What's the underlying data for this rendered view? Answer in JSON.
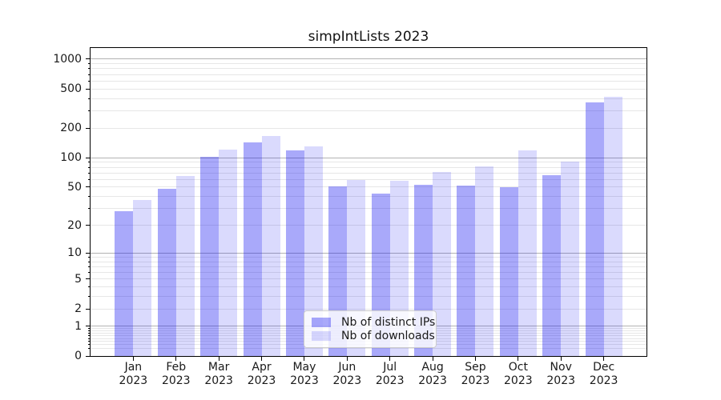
{
  "chart_data": {
    "type": "bar",
    "title": "simpIntLists 2023",
    "categories": [
      "Jan",
      "Feb",
      "Mar",
      "Apr",
      "May",
      "Jun",
      "Jul",
      "Aug",
      "Sep",
      "Oct",
      "Nov",
      "Dec"
    ],
    "x_year": "2023",
    "series": [
      {
        "name": "Nb of distinct IPs",
        "color": "rgba(10,10,240,0.35)",
        "values": [
          28,
          48,
          102,
          143,
          118,
          51,
          43,
          53,
          52,
          50,
          66,
          366
        ]
      },
      {
        "name": "Nb of downloads",
        "color": "rgba(10,10,240,0.15)",
        "values": [
          37,
          65,
          122,
          167,
          130,
          59,
          58,
          72,
          81,
          118,
          92,
          420
        ]
      }
    ],
    "y_scale": "log1p",
    "y_tick_values": [
      0,
      1,
      2,
      5,
      10,
      20,
      50,
      100,
      200,
      500,
      1000
    ],
    "ylim": [
      0,
      1300
    ],
    "grid": true,
    "legend_position": "lower center"
  },
  "colors": {
    "bar_distinct_ips_on_white": "#a9a9fa",
    "bar_downloads_on_white": "#dadafd",
    "grid_major": "#b2b2b2",
    "grid_minor": "#e7e7e7",
    "axis": "#000000",
    "text": "#1a1a1a",
    "legend_border": "#cccccc",
    "background": "#ffffff"
  }
}
